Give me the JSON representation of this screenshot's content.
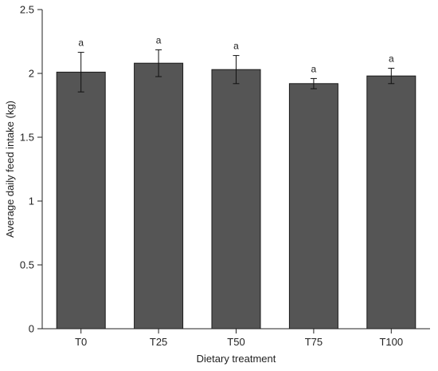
{
  "chart_data": {
    "type": "bar",
    "xlabel": "Dietary treatment",
    "ylabel": "Average daily feed intake (kg)",
    "categories": [
      "T0",
      "T25",
      "T50",
      "T75",
      "T100"
    ],
    "values": [
      2.01,
      2.08,
      2.03,
      1.92,
      1.98
    ],
    "errors": [
      0.155,
      0.105,
      0.11,
      0.04,
      0.06
    ],
    "significance": [
      "a",
      "a",
      "a",
      "a",
      "a"
    ],
    "ylim": [
      0,
      2.5
    ],
    "yticks": [
      0,
      0.5,
      1,
      1.5,
      2,
      2.5
    ],
    "ytick_labels": [
      "0",
      "0.5",
      "1",
      "1.5",
      "2",
      "2.5"
    ],
    "grid": false,
    "legend": "none",
    "colors": {
      "bar": "#555555",
      "bar_edge": "#1a1a1a",
      "axis": "#222222"
    }
  }
}
